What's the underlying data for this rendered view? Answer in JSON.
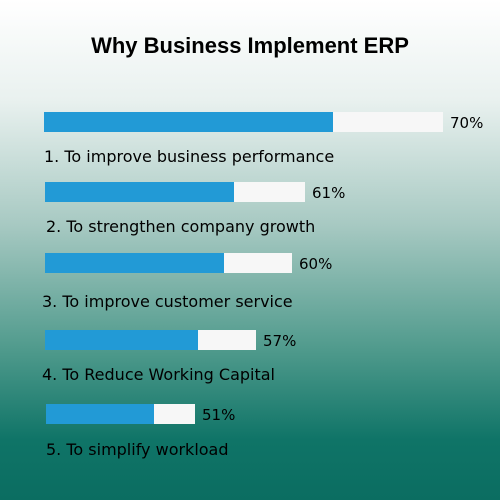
{
  "chart_data": {
    "type": "bar",
    "orientation": "horizontal",
    "title": "Why Business Implement ERP",
    "categories": [
      "1. To improve business performance",
      "2. To strengthen company growth",
      "3. To improve customer service",
      "4. To Reduce Working Capital",
      "5. To simplify workload"
    ],
    "values": [
      70,
      61,
      60,
      57,
      51
    ],
    "value_labels": [
      "70%",
      "61%",
      "60%",
      "57%",
      "51%"
    ],
    "colors": {
      "fill": "#229ad6",
      "track": "#f7f7f7"
    }
  }
}
